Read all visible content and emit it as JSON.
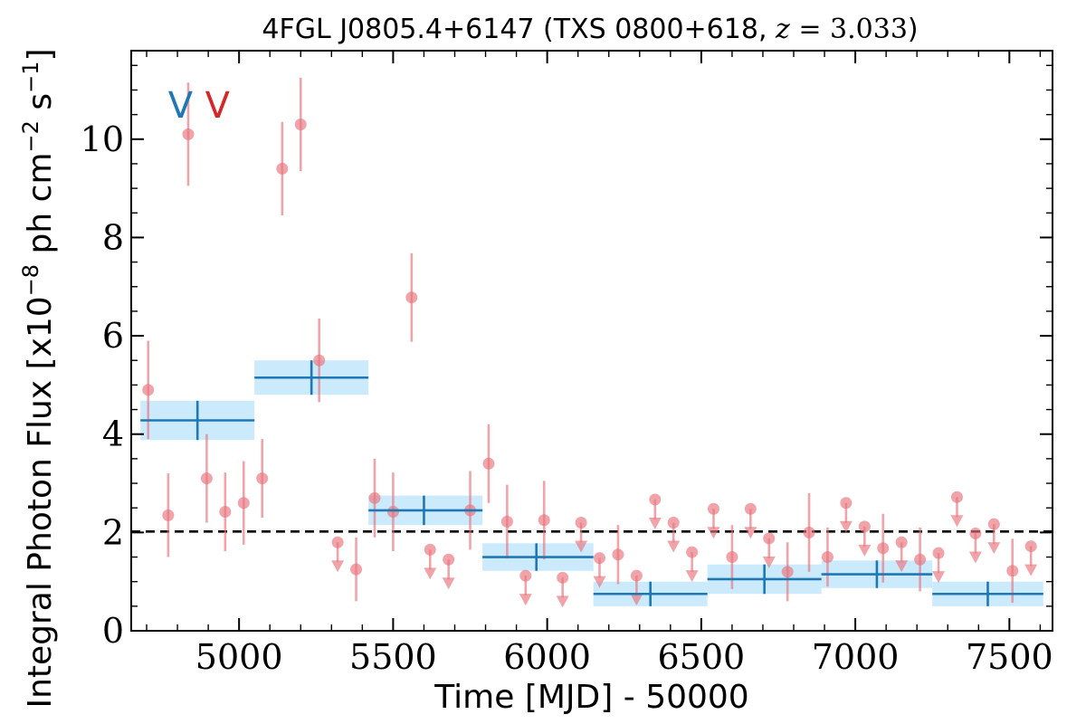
{
  "chart_data": {
    "type": "scatter",
    "title_parts": {
      "source": "4FGL J0805.4+6147 (TXS 0800+618, ",
      "z_symbol": "z",
      "z_value": " = 3.033",
      "close": ")"
    },
    "xlabel": "Time [MJD] - 50000",
    "ylabel": "Integral Photon Flux [x10",
    "ylabel_exp": "−8",
    "ylabel_units": " ph cm",
    "ylabel_exp2": "−2",
    "ylabel_units2": " s",
    "ylabel_exp3": "−1",
    "ylabel_close": "]",
    "xlim": [
      4650,
      7640
    ],
    "ylim": [
      0,
      11.8
    ],
    "xticks": [
      5000,
      5500,
      6000,
      6500,
      7000,
      7500
    ],
    "yticks": [
      0,
      2,
      4,
      6,
      8,
      10
    ],
    "reference_level": 2.02,
    "markers": [
      {
        "label": "V",
        "x": 4810,
        "color": "#1f77b4"
      },
      {
        "label": "V",
        "x": 4930,
        "color": "#d62728"
      }
    ],
    "detections": [
      {
        "x": 4705,
        "y": 4.9,
        "err": 1.0
      },
      {
        "x": 4770,
        "y": 2.35,
        "err": 0.85
      },
      {
        "x": 4835,
        "y": 10.1,
        "err": 1.05
      },
      {
        "x": 4895,
        "y": 3.1,
        "err": 0.9
      },
      {
        "x": 4955,
        "y": 2.42,
        "err": 0.8
      },
      {
        "x": 5015,
        "y": 2.6,
        "err": 0.85
      },
      {
        "x": 5075,
        "y": 3.1,
        "err": 0.8
      },
      {
        "x": 5140,
        "y": 9.4,
        "err": 0.95
      },
      {
        "x": 5200,
        "y": 10.3,
        "err": 0.95
      },
      {
        "x": 5260,
        "y": 5.5,
        "err": 0.85
      },
      {
        "x": 5380,
        "y": 1.25,
        "err": 0.65
      },
      {
        "x": 5440,
        "y": 2.7,
        "err": 0.8
      },
      {
        "x": 5500,
        "y": 2.42,
        "err": 0.8
      },
      {
        "x": 5560,
        "y": 6.78,
        "err": 0.9
      },
      {
        "x": 5750,
        "y": 2.45,
        "err": 0.8
      },
      {
        "x": 5810,
        "y": 3.4,
        "err": 0.8
      },
      {
        "x": 5870,
        "y": 2.22,
        "err": 0.75
      },
      {
        "x": 5990,
        "y": 2.25,
        "err": 0.8
      },
      {
        "x": 6230,
        "y": 1.55,
        "err": 0.6
      },
      {
        "x": 6600,
        "y": 1.5,
        "err": 0.65
      },
      {
        "x": 6780,
        "y": 1.2,
        "err": 0.6
      },
      {
        "x": 6850,
        "y": 2.0,
        "err": 0.8
      },
      {
        "x": 6910,
        "y": 1.5,
        "err": 0.6
      },
      {
        "x": 7090,
        "y": 1.68,
        "err": 0.7
      },
      {
        "x": 7210,
        "y": 1.45,
        "err": 0.65
      },
      {
        "x": 7510,
        "y": 1.22,
        "err": 0.65
      }
    ],
    "upper_limits": [
      {
        "x": 5320,
        "y": 1.8
      },
      {
        "x": 5620,
        "y": 1.65
      },
      {
        "x": 5680,
        "y": 1.45
      },
      {
        "x": 5930,
        "y": 1.12
      },
      {
        "x": 6050,
        "y": 1.08
      },
      {
        "x": 6110,
        "y": 2.2
      },
      {
        "x": 6170,
        "y": 1.48
      },
      {
        "x": 6290,
        "y": 1.12
      },
      {
        "x": 6350,
        "y": 2.67
      },
      {
        "x": 6410,
        "y": 2.2
      },
      {
        "x": 6470,
        "y": 1.6
      },
      {
        "x": 6540,
        "y": 2.48
      },
      {
        "x": 6660,
        "y": 2.48
      },
      {
        "x": 6720,
        "y": 1.88
      },
      {
        "x": 6970,
        "y": 2.6
      },
      {
        "x": 7030,
        "y": 2.12
      },
      {
        "x": 7150,
        "y": 1.8
      },
      {
        "x": 7270,
        "y": 1.58
      },
      {
        "x": 7330,
        "y": 2.72
      },
      {
        "x": 7390,
        "y": 1.98
      },
      {
        "x": 7450,
        "y": 2.17
      },
      {
        "x": 7570,
        "y": 1.72
      }
    ],
    "bins": [
      {
        "x_start": 4680,
        "x_end": 5050,
        "x_center": 4865,
        "y": 4.28,
        "y_err": 0.4
      },
      {
        "x_start": 5050,
        "x_end": 5420,
        "x_center": 5235,
        "y": 5.15,
        "y_err": 0.35
      },
      {
        "x_start": 5420,
        "x_end": 5790,
        "x_center": 5600,
        "y": 2.45,
        "y_err": 0.3
      },
      {
        "x_start": 5790,
        "x_end": 6150,
        "x_center": 5965,
        "y": 1.5,
        "y_err": 0.28
      },
      {
        "x_start": 6150,
        "x_end": 6520,
        "x_center": 6335,
        "y": 0.75,
        "y_err": 0.25
      },
      {
        "x_start": 6520,
        "x_end": 6890,
        "x_center": 6705,
        "y": 1.05,
        "y_err": 0.3
      },
      {
        "x_start": 6890,
        "x_end": 7250,
        "x_center": 7070,
        "y": 1.15,
        "y_err": 0.28
      },
      {
        "x_start": 7250,
        "x_end": 7610,
        "x_center": 7430,
        "y": 0.75,
        "y_err": 0.25
      }
    ],
    "colors": {
      "points": "#e8737b",
      "bins": "#1f77b4",
      "bin_band": "#cbeafb",
      "reference": "#000000"
    },
    "grid": false,
    "legend": "none"
  }
}
